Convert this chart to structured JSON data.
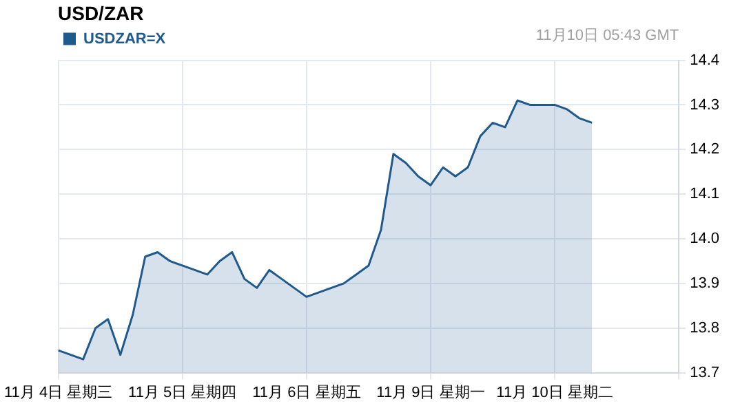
{
  "chart_data": {
    "type": "area",
    "title": "USD/ZAR",
    "annotations": [
      "11月10日 05:43 GMT"
    ],
    "categories": [
      "11月 4日 星期三",
      null,
      null,
      null,
      null,
      null,
      null,
      null,
      null,
      null,
      "11月 5日 星期四",
      null,
      null,
      null,
      null,
      null,
      null,
      null,
      null,
      null,
      "11月 6日 星期五",
      null,
      null,
      null,
      null,
      null,
      null,
      null,
      null,
      null,
      "11月 9日 星期一",
      null,
      null,
      null,
      null,
      null,
      null,
      null,
      null,
      null,
      "11月 10日 星期二",
      null,
      null,
      null,
      null,
      null,
      null,
      null,
      null,
      null,
      null
    ],
    "series": [
      {
        "name": "USDZAR=X",
        "color": "#1f5a8e",
        "values": [
          13.75,
          13.74,
          13.73,
          13.8,
          13.82,
          13.74,
          13.83,
          13.96,
          13.97,
          13.95,
          13.94,
          13.93,
          13.92,
          13.95,
          13.97,
          13.91,
          13.89,
          13.93,
          13.91,
          13.89,
          13.87,
          13.88,
          13.89,
          13.9,
          13.92,
          13.94,
          14.02,
          14.19,
          14.17,
          14.14,
          14.12,
          14.16,
          14.14,
          14.16,
          14.23,
          14.26,
          14.25,
          14.31,
          14.3,
          14.3,
          14.3,
          14.29,
          14.27,
          14.26,
          null,
          null,
          null,
          null,
          null,
          null,
          null
        ]
      }
    ],
    "ylim": [
      13.7,
      14.4
    ],
    "yticks": [
      13.7,
      13.8,
      13.9,
      {
        "value": 14.0,
        "label": "14.0"
      },
      14.1,
      14.2,
      14.3,
      14.4
    ],
    "grid": true,
    "legend": "top left",
    "marker": "none",
    "line_style": "solid"
  }
}
